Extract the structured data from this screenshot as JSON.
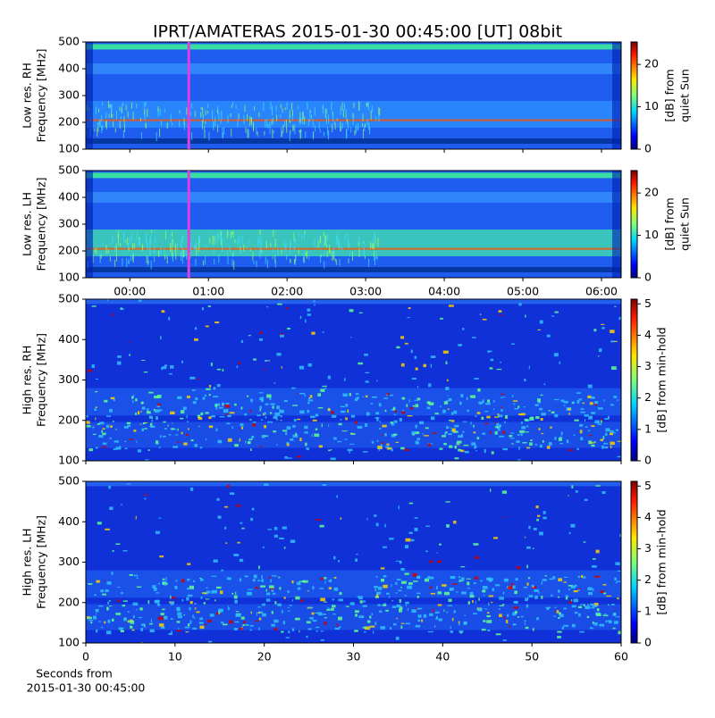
{
  "title": "IPRT/AMATERAS 2015-01-30 00:45:00 [UT]   08bit",
  "chart_data": [
    {
      "type": "heatmap",
      "ylabel": [
        "Low res. RH",
        "Frequency [MHz]"
      ],
      "ylim": [
        100,
        500
      ],
      "yticks": [
        100,
        200,
        300,
        400,
        500
      ],
      "xlim": [
        -0.56,
        6.25
      ],
      "colorbar": {
        "label": [
          "[dB] from",
          "quiet Sun"
        ],
        "lim": [
          0,
          25.3
        ],
        "ticks": [
          0,
          10,
          20
        ],
        "colormap": "jet"
      },
      "marker_x": 0.75,
      "marker_color": "#e040e0"
    },
    {
      "type": "heatmap",
      "ylabel": [
        "Low res. LH",
        "Frequency [MHz]"
      ],
      "ylim": [
        100,
        500
      ],
      "yticks": [
        100,
        200,
        300,
        400,
        500
      ],
      "xlim": [
        -0.56,
        6.25
      ],
      "xticks": [
        {
          "value": 0,
          "label": "00:00"
        },
        {
          "value": 1,
          "label": "01:00"
        },
        {
          "value": 2,
          "label": "02:00"
        },
        {
          "value": 3,
          "label": "03:00"
        },
        {
          "value": 4,
          "label": "04:00"
        },
        {
          "value": 5,
          "label": "05:00"
        },
        {
          "value": 6,
          "label": "06:00"
        }
      ],
      "colorbar": {
        "label": [
          "[dB] from",
          "quiet Sun"
        ],
        "lim": [
          0,
          25.3
        ],
        "ticks": [
          0,
          10,
          20
        ],
        "colormap": "jet"
      },
      "marker_x": 0.75,
      "marker_color": "#e040e0"
    },
    {
      "type": "heatmap",
      "ylabel": [
        "High res. RH",
        "Frequency [MHz]"
      ],
      "ylim": [
        100,
        500
      ],
      "yticks": [
        100,
        200,
        300,
        400,
        500
      ],
      "xlim": [
        0,
        60
      ],
      "colorbar": {
        "label": [
          "[dB] from min-hold"
        ],
        "lim": [
          0,
          5.15
        ],
        "ticks": [
          0,
          1,
          2,
          3,
          4,
          5
        ],
        "colormap": "jet"
      }
    },
    {
      "type": "heatmap",
      "ylabel": [
        "High res. LH",
        "Frequency [MHz]"
      ],
      "ylim": [
        100,
        500
      ],
      "yticks": [
        100,
        200,
        300,
        400,
        500
      ],
      "xlim": [
        0,
        60
      ],
      "xticks": [
        0,
        10,
        20,
        30,
        40,
        50,
        60
      ],
      "xlabel": [
        "Seconds from",
        "2015-01-30 00:45:00"
      ],
      "colorbar": {
        "label": [
          "[dB] from min-hold"
        ],
        "lim": [
          0,
          5.15
        ],
        "ticks": [
          0,
          1,
          2,
          3,
          4,
          5
        ],
        "colormap": "jet"
      }
    }
  ]
}
